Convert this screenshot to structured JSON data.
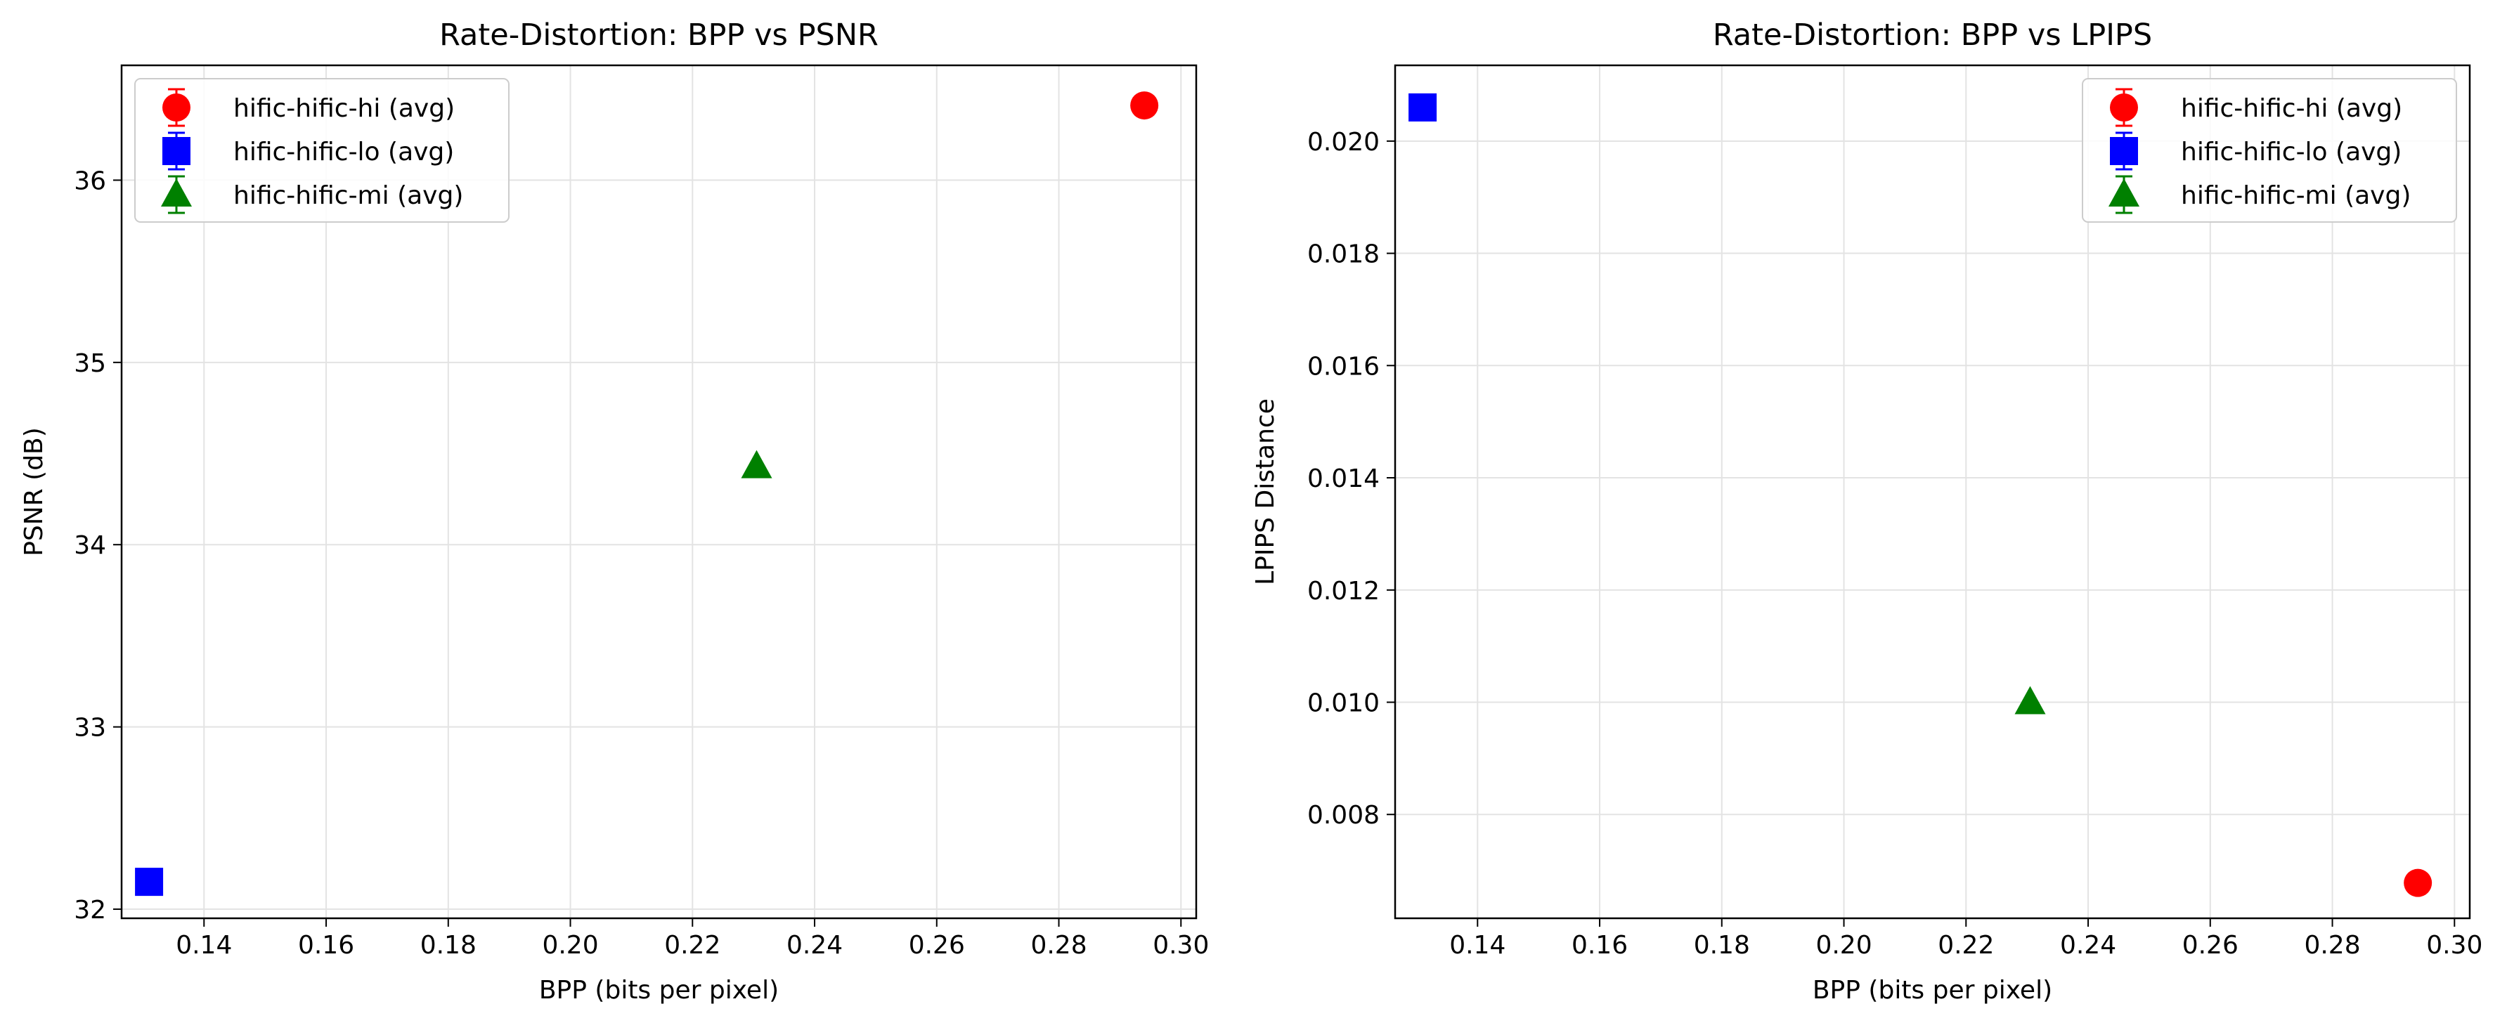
{
  "chart_data": [
    {
      "type": "scatter",
      "title": "Rate-Distortion: BPP vs PSNR",
      "xlabel": "BPP (bits per pixel)",
      "ylabel": "PSNR (dB)",
      "xlim": [
        0.1265,
        0.3025
      ],
      "ylim": [
        31.95,
        36.63
      ],
      "xticks": [
        "0.14",
        "0.16",
        "0.18",
        "0.20",
        "0.22",
        "0.24",
        "0.26",
        "0.28",
        "0.30"
      ],
      "yticks": [
        "32",
        "33",
        "34",
        "35",
        "36"
      ],
      "grid": true,
      "legend_position": "upper left",
      "series": [
        {
          "name": "hific-hific-hi (avg)",
          "marker": "circle",
          "color": "#ff0000",
          "x": 0.294,
          "y": 36.41
        },
        {
          "name": "hific-hific-lo (avg)",
          "marker": "square",
          "color": "#0000ff",
          "x": 0.131,
          "y": 32.15
        },
        {
          "name": "hific-hific-mi (avg)",
          "marker": "triangle",
          "color": "#008000",
          "x": 0.2305,
          "y": 34.43
        }
      ]
    },
    {
      "type": "scatter",
      "title": "Rate-Distortion: BPP vs LPIPS",
      "xlabel": "BPP (bits per pixel)",
      "ylabel": "LPIPS Distance",
      "xlim": [
        0.1265,
        0.3025
      ],
      "ylim": [
        0.00615,
        0.02135
      ],
      "xticks": [
        "0.14",
        "0.16",
        "0.18",
        "0.20",
        "0.22",
        "0.24",
        "0.26",
        "0.28",
        "0.30"
      ],
      "yticks": [
        "0.008",
        "0.010",
        "0.012",
        "0.014",
        "0.016",
        "0.018",
        "0.020"
      ],
      "grid": true,
      "legend_position": "upper right",
      "series": [
        {
          "name": "hific-hific-hi (avg)",
          "marker": "circle",
          "color": "#ff0000",
          "x": 0.294,
          "y": 0.00678
        },
        {
          "name": "hific-hific-lo (avg)",
          "marker": "square",
          "color": "#0000ff",
          "x": 0.131,
          "y": 0.0206
        },
        {
          "name": "hific-hific-mi (avg)",
          "marker": "triangle",
          "color": "#008000",
          "x": 0.2305,
          "y": 0.01
        }
      ]
    }
  ]
}
